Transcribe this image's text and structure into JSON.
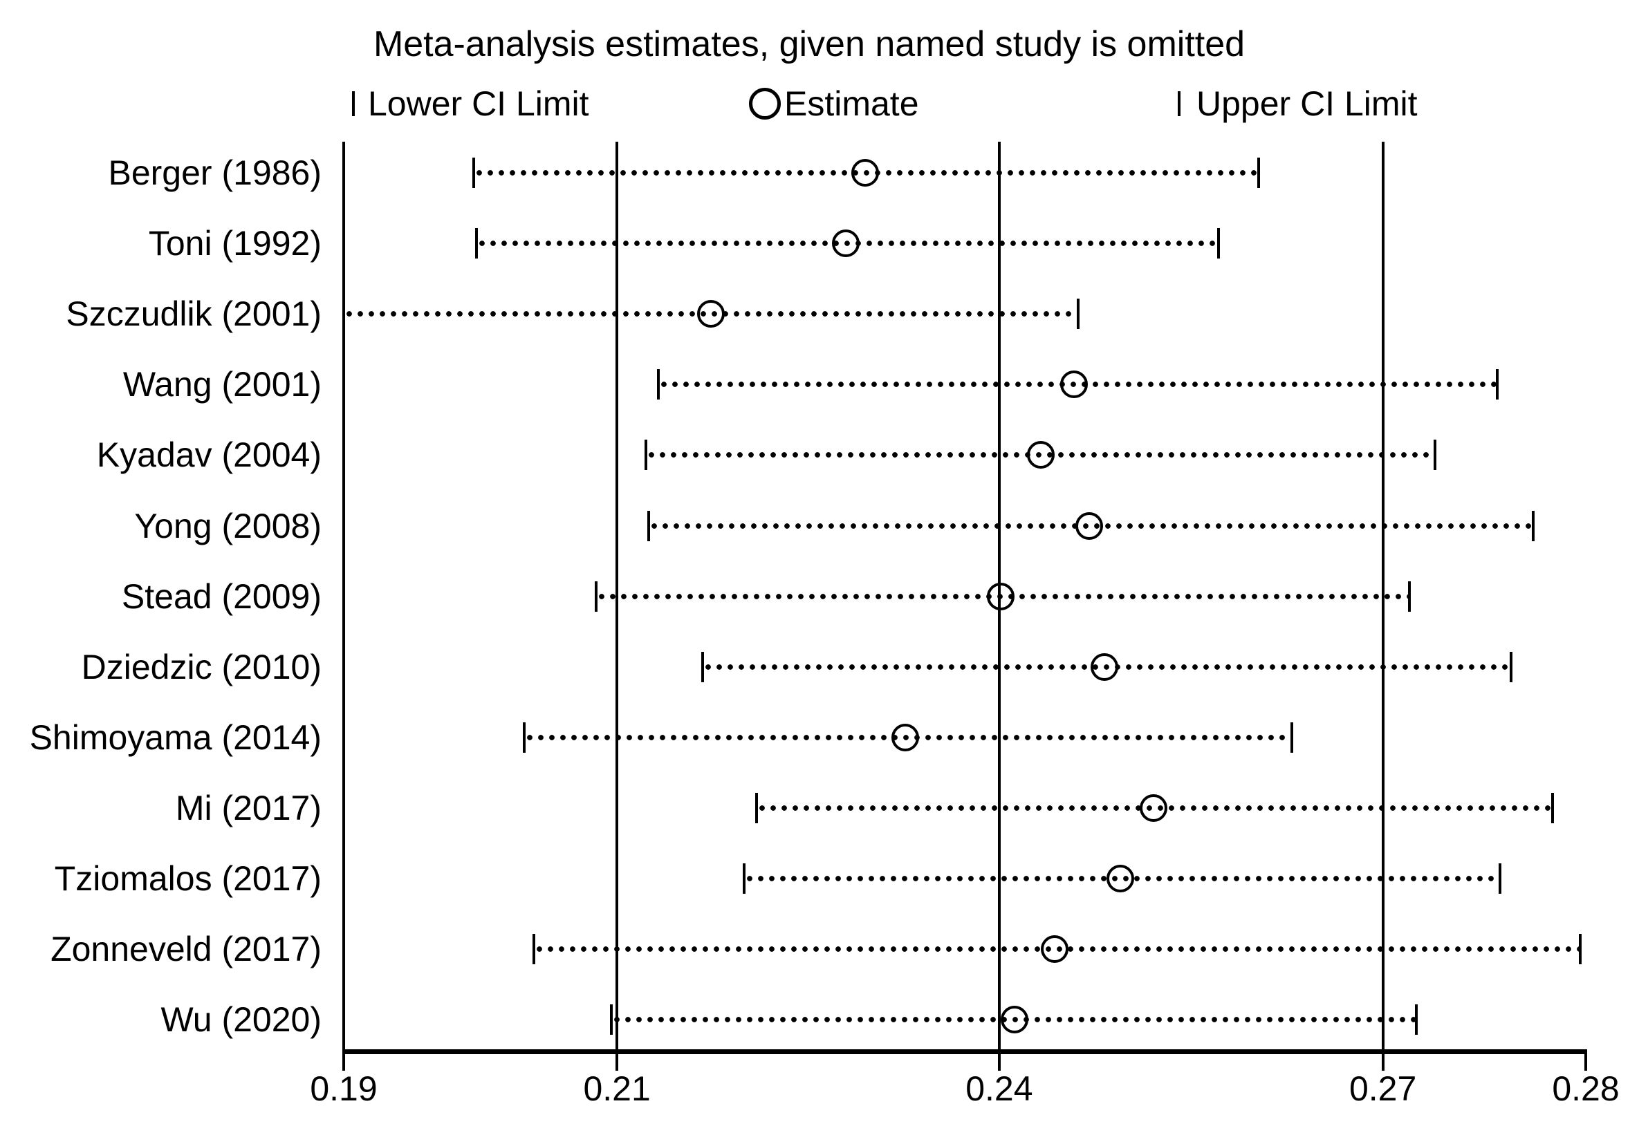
{
  "figure": {
    "title": "Meta-analysis estimates, given named study is omitted",
    "background_color": "#ffffff",
    "foreground_color": "#000000"
  },
  "legend": {
    "lower_label": "Lower CI Limit",
    "estimate_label": "Estimate",
    "upper_label": "Upper CI Limit"
  },
  "chart_data": {
    "type": "forest",
    "subtype": "leave-one-out-sensitivity",
    "title": "Meta-analysis estimates, given named study is omitted",
    "xlabel": "",
    "ylabel": "",
    "xlim": [
      0.19,
      0.28
    ],
    "grid": "vertical-reference-lines",
    "legend_position": "top",
    "x_ticks": [
      {
        "value": 0.19,
        "label": "0.19"
      },
      {
        "value": 0.2098,
        "label": "0.21"
      },
      {
        "value": 0.2375,
        "label": "0.24"
      },
      {
        "value": 0.2653,
        "label": "0.27"
      },
      {
        "value": 0.28,
        "label": "0.28"
      }
    ],
    "reference_lines": [
      {
        "name": "overall-lower-ci-line",
        "value": 0.2098,
        "axis_label": "0.21"
      },
      {
        "name": "overall-estimate-line",
        "value": 0.2375,
        "axis_label": "0.24"
      },
      {
        "name": "overall-upper-ci-line",
        "value": 0.2653,
        "axis_label": "0.27"
      }
    ],
    "studies": [
      {
        "label": "Berger (1986)",
        "lower": 0.1994,
        "estimate": 0.2278,
        "upper": 0.2563,
        "lower_cap": true
      },
      {
        "label": "Toni (1992)",
        "lower": 0.1996,
        "estimate": 0.2264,
        "upper": 0.2534,
        "lower_cap": true
      },
      {
        "label": "Szczudlik (2001)",
        "lower": 0.19,
        "estimate": 0.2166,
        "upper": 0.2432,
        "lower_cap": false
      },
      {
        "label": "Wang (2001)",
        "lower": 0.2128,
        "estimate": 0.2429,
        "upper": 0.2736,
        "lower_cap": true
      },
      {
        "label": "Kyadav (2004)",
        "lower": 0.2119,
        "estimate": 0.2405,
        "upper": 0.2691,
        "lower_cap": true
      },
      {
        "label": "Yong (2008)",
        "lower": 0.2121,
        "estimate": 0.244,
        "upper": 0.2762,
        "lower_cap": true
      },
      {
        "label": "Stead (2009)",
        "lower": 0.2083,
        "estimate": 0.2376,
        "upper": 0.2672,
        "lower_cap": true
      },
      {
        "label": "Dziedzic (2010)",
        "lower": 0.216,
        "estimate": 0.2451,
        "upper": 0.2746,
        "lower_cap": true
      },
      {
        "label": "Shimoyama (2014)",
        "lower": 0.2031,
        "estimate": 0.2307,
        "upper": 0.2587,
        "lower_cap": true
      },
      {
        "label": "Mi (2017)",
        "lower": 0.2199,
        "estimate": 0.2487,
        "upper": 0.2776,
        "lower_cap": true
      },
      {
        "label": "Tziomalos (2017)",
        "lower": 0.219,
        "estimate": 0.2463,
        "upper": 0.2738,
        "lower_cap": true
      },
      {
        "label": "Zonneveld (2017)",
        "lower": 0.2038,
        "estimate": 0.2415,
        "upper": 0.2796,
        "lower_cap": true
      },
      {
        "label": "Wu (2020)",
        "lower": 0.2094,
        "estimate": 0.2386,
        "upper": 0.2677,
        "lower_cap": true
      }
    ]
  }
}
